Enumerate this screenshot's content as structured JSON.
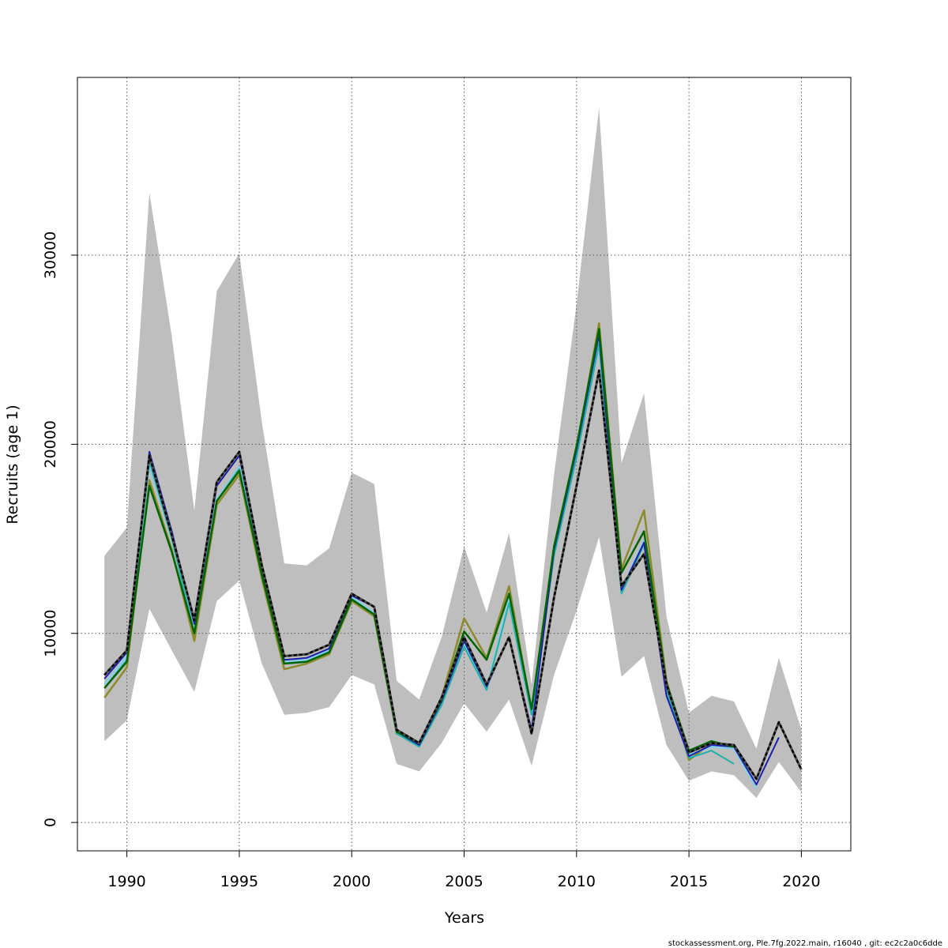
{
  "chart_data": {
    "type": "line",
    "title": "",
    "xlabel": "Years",
    "ylabel": "Recruits (age 1)",
    "xlim": [
      1987.8,
      2022.2
    ],
    "ylim": [
      -1500,
      39400
    ],
    "x_ticks": [
      1990,
      1995,
      2000,
      2005,
      2010,
      2015,
      2020
    ],
    "y_ticks": [
      0,
      10000,
      20000,
      30000
    ],
    "grid": true,
    "footer": "stockassessment.org, Ple.7fg.2022.main, r16040 , git: ec2c2a0c6dde",
    "band": {
      "name": "confidence interval",
      "color": "#bebebe",
      "x": [
        1989,
        1990,
        1991,
        1992,
        1993,
        1994,
        1995,
        1996,
        1997,
        1998,
        1999,
        2000,
        2001,
        2002,
        2003,
        2004,
        2005,
        2006,
        2007,
        2008,
        2009,
        2010,
        2011,
        2012,
        2013,
        2014,
        2015,
        2016,
        2017,
        2018,
        2019,
        2020
      ],
      "upper": [
        14100,
        15600,
        33300,
        25700,
        16500,
        28100,
        30100,
        21200,
        13700,
        13600,
        14500,
        18500,
        17900,
        7500,
        6500,
        9800,
        14600,
        11100,
        15300,
        7300,
        18400,
        27400,
        37800,
        19000,
        22700,
        10900,
        5800,
        6700,
        6400,
        3900,
        8700,
        4900
      ],
      "lower": [
        4300,
        5400,
        11300,
        9100,
        6900,
        11700,
        12800,
        8400,
        5700,
        5800,
        6100,
        7800,
        7300,
        3100,
        2700,
        4200,
        6300,
        4800,
        6500,
        3000,
        7800,
        11200,
        15100,
        7700,
        8800,
        4100,
        2200,
        2700,
        2500,
        1300,
        3200,
        1600
      ]
    },
    "series": [
      {
        "name": "olive",
        "color": "#8b8b2b",
        "width": 2.5,
        "dashed": false,
        "x": [
          1989,
          1990,
          1991,
          1992,
          1993,
          1994,
          1995,
          1996,
          1997,
          1998,
          1999,
          2000,
          2001,
          2002,
          2003,
          2004,
          2005,
          2006,
          2007,
          2008,
          2009,
          2010,
          2011,
          2012,
          2013,
          2014,
          2015,
          2016,
          2017,
          2018,
          2019,
          2020
        ],
        "values": [
          6600,
          8200,
          18100,
          14400,
          9600,
          16800,
          18400,
          12900,
          8100,
          8400,
          8900,
          11700,
          10900,
          4700,
          4200,
          6600,
          10800,
          8700,
          12500,
          5900,
          14200,
          19700,
          26400,
          13400,
          16500,
          7500,
          3300,
          4200,
          3900,
          null,
          null,
          null
        ]
      },
      {
        "name": "light blue",
        "color": "#87ceeb",
        "width": 2.5,
        "dashed": false,
        "x": [
          1989,
          1990,
          1991,
          1992,
          1993,
          1994,
          1995,
          1996,
          1997,
          1998,
          1999,
          2000,
          2001,
          2002,
          2003,
          2004,
          2005,
          2006,
          2007,
          2008,
          2009,
          2010,
          2011,
          2012,
          2013,
          2014,
          2015,
          2016,
          2017,
          2018,
          2019,
          2020
        ],
        "values": [
          7300,
          8800,
          18900,
          15000,
          10100,
          17100,
          18800,
          13300,
          8500,
          8600,
          9100,
          11900,
          11100,
          4800,
          4100,
          6300,
          9400,
          7100,
          11800,
          5800,
          14300,
          19600,
          25600,
          12300,
          14900,
          7200,
          3600,
          4000,
          3900,
          1800,
          null,
          null
        ]
      },
      {
        "name": "teal",
        "color": "#20b2aa",
        "width": 2,
        "dashed": false,
        "x": [
          1989,
          1990,
          1991,
          1992,
          1993,
          1994,
          1995,
          1996,
          1997,
          1998,
          1999,
          2000,
          2001,
          2002,
          2003,
          2004,
          2005,
          2006,
          2007,
          2008,
          2009,
          2010,
          2011,
          2012,
          2013,
          2014,
          2015,
          2016,
          2017,
          2018,
          2019,
          2020
        ],
        "values": [
          7100,
          8600,
          19100,
          15000,
          10000,
          17000,
          18700,
          13200,
          8400,
          8500,
          9000,
          11800,
          11000,
          4700,
          4000,
          6200,
          9300,
          7000,
          11600,
          5700,
          14100,
          19300,
          25300,
          12100,
          14700,
          7000,
          3400,
          3800,
          3100,
          null,
          null,
          null
        ]
      },
      {
        "name": "blue",
        "color": "#1f1fa8",
        "width": 2,
        "dashed": false,
        "x": [
          1989,
          1990,
          1991,
          1992,
          1993,
          1994,
          1995,
          1996,
          1997,
          1998,
          1999,
          2000,
          2001,
          2002,
          2003,
          2004,
          2005,
          2006,
          2007,
          2008,
          2009,
          2010,
          2011,
          2012,
          2013,
          2014,
          2015,
          2016,
          2017,
          2018,
          2019,
          2020
        ],
        "values": [
          7600,
          9000,
          19600,
          15400,
          10500,
          17800,
          19400,
          13400,
          8600,
          8700,
          9200,
          12000,
          11400,
          4800,
          4100,
          6400,
          9600,
          7200,
          9800,
          4900,
          14400,
          19700,
          25800,
          12300,
          14800,
          6700,
          3500,
          4100,
          4000,
          2000,
          4500,
          null
        ]
      },
      {
        "name": "green",
        "color": "#006400",
        "width": 2.5,
        "dashed": false,
        "x": [
          1989,
          1990,
          1991,
          1992,
          1993,
          1994,
          1995,
          1996,
          1997,
          1998,
          1999,
          2000,
          2001,
          2002,
          2003,
          2004,
          2005,
          2006,
          2007,
          2008,
          2009,
          2010,
          2011,
          2012,
          2013,
          2014,
          2015,
          2016,
          2017,
          2018,
          2019,
          2020
        ],
        "values": [
          7100,
          8500,
          17800,
          14300,
          10000,
          17000,
          18600,
          13100,
          8400,
          8500,
          9000,
          11800,
          11000,
          4800,
          4200,
          6500,
          10100,
          8600,
          12100,
          6000,
          14600,
          19900,
          26100,
          13200,
          15400,
          7400,
          3800,
          4300,
          4000,
          null,
          null,
          null
        ]
      },
      {
        "name": "black dashed",
        "color": "#000000",
        "width": 3,
        "dashed": true,
        "x": [
          1989,
          1990,
          1991,
          1992,
          1993,
          1994,
          1995,
          1996,
          1997,
          1998,
          1999,
          2000,
          2001,
          2002,
          2003,
          2004,
          2005,
          2006,
          2007,
          2008,
          2009,
          2010,
          2011,
          2012,
          2013,
          2014,
          2015,
          2016,
          2017,
          2018,
          2019,
          2020
        ],
        "values": [
          7800,
          9100,
          19400,
          15200,
          10700,
          18000,
          19600,
          13600,
          8800,
          8900,
          9400,
          12100,
          11400,
          4900,
          4200,
          6600,
          9800,
          7300,
          9800,
          4700,
          11900,
          17800,
          23900,
          12500,
          14200,
          7300,
          3700,
          4200,
          4100,
          2300,
          5300,
          2800
        ]
      }
    ]
  }
}
